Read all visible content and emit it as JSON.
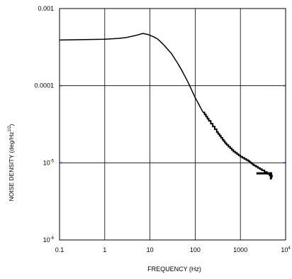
{
  "chart_data": {
    "type": "line",
    "xlabel": "FREQUENCY (Hz)",
    "ylabel": {
      "main": "NOISE DENSITY (deg/Hz",
      "sup": "1/2",
      "close": ")"
    },
    "x_scale": "log",
    "y_scale": "log",
    "xlim": [
      0.1,
      10000
    ],
    "ylim": [
      1e-06,
      0.001
    ],
    "x_ticks": [
      {
        "value": 0.1,
        "label": "0.1"
      },
      {
        "value": 1,
        "label": "1"
      },
      {
        "value": 10,
        "label": "10"
      },
      {
        "value": 100,
        "label": "100"
      },
      {
        "value": 1000,
        "label": "1000"
      },
      {
        "value": 10000,
        "label": "10",
        "sup": "4"
      }
    ],
    "y_ticks": [
      {
        "value": 0.001,
        "label": "0.001"
      },
      {
        "value": 0.0001,
        "label": "0.0001"
      },
      {
        "value": 1e-05,
        "label": "10",
        "sup": "-5"
      },
      {
        "value": 1e-06,
        "label": "10",
        "sup": "-6"
      }
    ],
    "grid": true,
    "series": [
      {
        "x": [
          0.1,
          1,
          2,
          3,
          5,
          7,
          9,
          12,
          15,
          20,
          30,
          40,
          50,
          70,
          100,
          150,
          200,
          300,
          400,
          500,
          700,
          1000,
          1500,
          2000,
          3000,
          5000
        ],
        "y": [
          0.00039,
          0.0004,
          0.00041,
          0.00042,
          0.00045,
          0.000475,
          0.00046,
          0.00043,
          0.0004,
          0.00034,
          0.00026,
          0.0002,
          0.00016,
          0.00011,
          7e-05,
          4.5e-05,
          3.5e-05,
          2.5e-05,
          2e-05,
          1.7e-05,
          1.4e-05,
          1.2e-05,
          1.05e-05,
          9.2e-06,
          8e-06,
          6.5e-06
        ]
      }
    ]
  }
}
